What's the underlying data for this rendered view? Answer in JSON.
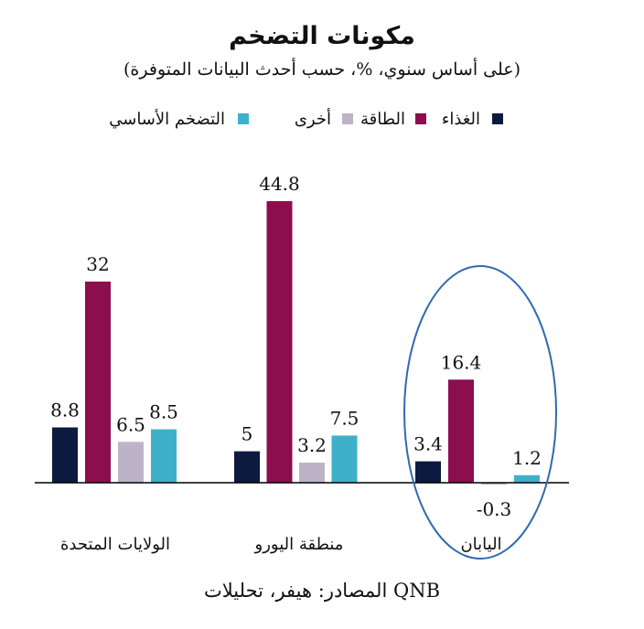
{
  "chart_data": {
    "type": "bar",
    "title": "مكونات التضخم",
    "subtitle": "(على أساس سنوي، %، حسب أحدث البيانات المتوفرة)",
    "source": "المصادر: هيفر، تحليلات QNB",
    "categories": [
      "الولايات المتحدة",
      "منطقة اليورو",
      "اليابان"
    ],
    "series": [
      {
        "name": "الغذاء",
        "color": "#0d1a3f",
        "values": [
          8.8,
          5,
          3.4
        ]
      },
      {
        "name": "الطاقة",
        "color": "#8c0e4f",
        "values": [
          32,
          44.8,
          16.4
        ]
      },
      {
        "name": "أخرى",
        "color": "#bdb3c7",
        "values": [
          6.5,
          3.2,
          -0.3
        ]
      },
      {
        "name": "التضخم الأساسي",
        "color": "#3db1c9",
        "values": [
          8.5,
          7.5,
          1.2
        ]
      }
    ],
    "value_labels": [
      [
        "8.8",
        "5",
        "3.4"
      ],
      [
        "32",
        "44.8",
        "16.4"
      ],
      [
        "6.5",
        "3.2",
        "-0.3"
      ],
      [
        "8.5",
        "7.5",
        "1.2"
      ]
    ],
    "highlight": {
      "category": "اليابان",
      "shape": "ellipse",
      "color": "#2e6bb0"
    },
    "legend_position": "top",
    "grid": false
  }
}
